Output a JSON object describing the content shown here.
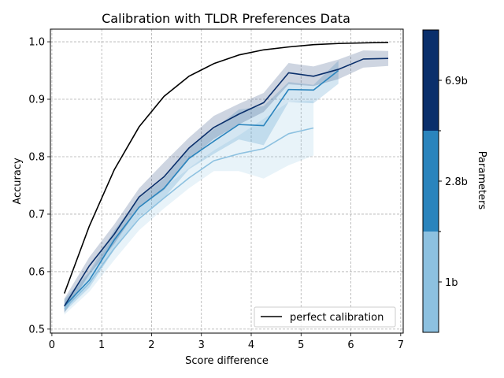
{
  "chart_data": {
    "type": "line",
    "title": "Calibration with TLDR Preferences Data",
    "xlabel": "Score difference",
    "ylabel": "Accuracy",
    "xlim": [
      -0.03,
      7.05
    ],
    "ylim": [
      0.493,
      1.022
    ],
    "xticks": [
      "0",
      "1",
      "2",
      "3",
      "4",
      "5",
      "6",
      "7"
    ],
    "yticks": [
      "0.5",
      "0.6",
      "0.7",
      "0.8",
      "0.9",
      "1.0"
    ],
    "grid": true,
    "grid_style": "dashed",
    "legend_position": "lower-right",
    "legend": [
      "perfect calibration"
    ],
    "colorbar": {
      "label": "Parameters",
      "ticks": [
        "1b",
        "2.8b",
        "6.9b"
      ],
      "colors": [
        "#8dc1e0",
        "#2a84bd",
        "#0a2f6b"
      ]
    },
    "series": [
      {
        "name": "perfect calibration",
        "color": "#000000",
        "x": [
          0.25,
          0.75,
          1.25,
          1.75,
          2.25,
          2.75,
          3.25,
          3.75,
          4.25,
          4.75,
          5.25,
          5.75,
          6.25,
          6.75
        ],
        "y": [
          0.562,
          0.679,
          0.777,
          0.852,
          0.905,
          0.94,
          0.962,
          0.977,
          0.986,
          0.991,
          0.995,
          0.997,
          0.998,
          0.999
        ]
      },
      {
        "name": "1b",
        "color": "#8dc1e0",
        "x": [
          0.25,
          0.75,
          1.25,
          1.75,
          2.25,
          2.75,
          3.25,
          3.75,
          4.25,
          4.75,
          5.25
        ],
        "y": [
          0.535,
          0.58,
          0.64,
          0.692,
          0.728,
          0.763,
          0.793,
          0.805,
          0.814,
          0.84,
          0.85
        ],
        "lower": [
          0.525,
          0.565,
          0.62,
          0.672,
          0.71,
          0.745,
          0.775,
          0.775,
          0.762,
          0.785,
          0.802
        ],
        "upper": [
          0.548,
          0.597,
          0.66,
          0.712,
          0.746,
          0.78,
          0.811,
          0.837,
          0.866,
          0.895,
          0.898
        ]
      },
      {
        "name": "2.8b",
        "color": "#2a84bd",
        "x": [
          0.25,
          0.75,
          1.25,
          1.75,
          2.25,
          2.75,
          3.25,
          3.75,
          4.25,
          4.75,
          5.25,
          5.75
        ],
        "y": [
          0.54,
          0.585,
          0.655,
          0.712,
          0.745,
          0.797,
          0.827,
          0.856,
          0.854,
          0.917,
          0.916,
          0.95
        ],
        "lower": [
          0.53,
          0.572,
          0.638,
          0.695,
          0.728,
          0.778,
          0.805,
          0.83,
          0.82,
          0.895,
          0.893,
          0.927
        ],
        "upper": [
          0.552,
          0.6,
          0.672,
          0.728,
          0.762,
          0.815,
          0.848,
          0.882,
          0.888,
          0.93,
          0.925,
          0.967
        ]
      },
      {
        "name": "6.9b",
        "color": "#0a2f6b",
        "x": [
          0.25,
          0.75,
          1.25,
          1.75,
          2.25,
          2.75,
          3.25,
          3.75,
          4.25,
          4.75,
          5.25,
          5.75,
          6.25,
          6.75
        ],
        "y": [
          0.54,
          0.61,
          0.665,
          0.73,
          0.765,
          0.815,
          0.851,
          0.874,
          0.894,
          0.946,
          0.94,
          0.952,
          0.97,
          0.971
        ],
        "lower": [
          0.528,
          0.595,
          0.648,
          0.712,
          0.742,
          0.795,
          0.831,
          0.856,
          0.878,
          0.926,
          0.923,
          0.935,
          0.955,
          0.958
        ],
        "upper": [
          0.553,
          0.625,
          0.682,
          0.745,
          0.79,
          0.833,
          0.871,
          0.892,
          0.911,
          0.963,
          0.957,
          0.969,
          0.985,
          0.984
        ]
      }
    ]
  }
}
